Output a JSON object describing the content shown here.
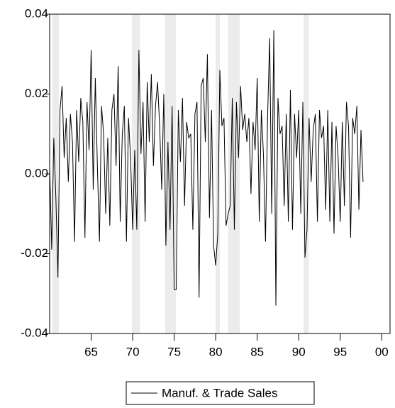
{
  "chart_data": {
    "type": "line",
    "x": [
      1960,
      1960.25,
      1960.5,
      1960.75,
      1961,
      1961.25,
      1961.5,
      1961.75,
      1962,
      1962.25,
      1962.5,
      1962.75,
      1963,
      1963.25,
      1963.5,
      1963.75,
      1964,
      1964.25,
      1964.5,
      1964.75,
      1965,
      1965.25,
      1965.5,
      1965.75,
      1966,
      1966.25,
      1966.5,
      1966.75,
      1967,
      1967.25,
      1967.5,
      1967.75,
      1968,
      1968.25,
      1968.5,
      1968.75,
      1969,
      1969.25,
      1969.5,
      1969.75,
      1970,
      1970.25,
      1970.5,
      1970.75,
      1971,
      1971.25,
      1971.5,
      1971.75,
      1972,
      1972.25,
      1972.5,
      1972.75,
      1973,
      1973.25,
      1973.5,
      1973.75,
      1974,
      1974.25,
      1974.5,
      1974.75,
      1975,
      1975.25,
      1975.5,
      1975.75,
      1976,
      1976.25,
      1976.5,
      1976.75,
      1977,
      1977.25,
      1977.5,
      1977.75,
      1978,
      1978.25,
      1978.5,
      1978.75,
      1979,
      1979.25,
      1979.5,
      1979.75,
      1980,
      1980.25,
      1980.5,
      1980.75,
      1981,
      1981.25,
      1981.5,
      1981.75,
      1982,
      1982.25,
      1982.5,
      1982.75,
      1983,
      1983.25,
      1983.5,
      1983.75,
      1984,
      1984.25,
      1984.5,
      1984.75,
      1985,
      1985.25,
      1985.5,
      1985.75,
      1986,
      1986.25,
      1986.5,
      1986.75,
      1987,
      1987.25,
      1987.5,
      1987.75,
      1988,
      1988.25,
      1988.5,
      1988.75,
      1989,
      1989.25,
      1989.5,
      1989.75,
      1990,
      1990.25,
      1990.5,
      1990.75,
      1991,
      1991.25,
      1991.5,
      1991.75,
      1992,
      1992.25,
      1992.5,
      1992.75,
      1993,
      1993.25,
      1993.5,
      1993.75,
      1994,
      1994.25,
      1994.5,
      1994.75,
      1995,
      1995.25,
      1995.5,
      1995.75,
      1996,
      1996.25,
      1996.5,
      1996.75,
      1997,
      1997.25,
      1997.5,
      1997.75
    ],
    "series": [
      {
        "name": "Manuf. & Trade Sales",
        "color": "#000000",
        "values": [
          0.002,
          -0.019,
          0.009,
          -0.006,
          -0.026,
          0.016,
          0.022,
          0.004,
          0.014,
          -0.002,
          0.015,
          0.008,
          -0.017,
          0.016,
          0.003,
          0.019,
          0.013,
          -0.016,
          0.018,
          0.006,
          0.031,
          -0.004,
          0.024,
          0.002,
          -0.017,
          0.017,
          0.01,
          -0.01,
          0.009,
          -0.013,
          0.016,
          0.02,
          0.002,
          0.027,
          -0.012,
          0.01,
          0.017,
          -0.017,
          0.014,
          0.004,
          -0.014,
          0.006,
          -0.014,
          0.031,
          0.005,
          0.018,
          -0.012,
          0.023,
          0.008,
          0.025,
          0.002,
          0.017,
          0.023,
          0.012,
          -0.004,
          0.02,
          -0.018,
          0.008,
          -0.014,
          0.017,
          -0.029,
          -0.029,
          0.016,
          0.003,
          0.019,
          -0.008,
          0.013,
          0.009,
          0.01,
          -0.014,
          0.015,
          0.018,
          -0.031,
          0.022,
          0.024,
          0.008,
          0.03,
          -0.011,
          0.016,
          -0.018,
          -0.023,
          -0.015,
          0.026,
          0.012,
          0.014,
          -0.013,
          -0.01,
          -0.008,
          0.019,
          -0.014,
          0.018,
          0.004,
          0.022,
          0.011,
          0.015,
          0.008,
          0.014,
          -0.005,
          0.013,
          0.006,
          0.024,
          -0.012,
          0.016,
          0.005,
          -0.017,
          0.014,
          0.034,
          -0.01,
          0.036,
          -0.033,
          0.019,
          0.01,
          0.012,
          -0.008,
          0.015,
          -0.012,
          0.021,
          -0.014,
          0.015,
          0.004,
          0.016,
          -0.01,
          0.018,
          -0.021,
          -0.014,
          0.014,
          -0.002,
          0.011,
          0.015,
          -0.012,
          0.016,
          0.009,
          0.012,
          -0.009,
          0.016,
          -0.012,
          0.013,
          -0.015,
          0.012,
          0.004,
          -0.012,
          0.013,
          -0.008,
          0.018,
          0.012,
          -0.016,
          0.014,
          0.01,
          0.017,
          -0.009,
          0.011,
          -0.002
        ]
      }
    ],
    "shaded_regions": [
      [
        1960.3,
        1961.1
      ],
      [
        1969.9,
        1970.9
      ],
      [
        1973.9,
        1975.2
      ],
      [
        1980.0,
        1980.5
      ],
      [
        1981.5,
        1982.9
      ],
      [
        1990.6,
        1991.2
      ]
    ],
    "shade_color": "#ececec",
    "xlim": [
      1960,
      2001
    ],
    "xticks": [
      {
        "value": 1965,
        "label": "65"
      },
      {
        "value": 1970,
        "label": "70"
      },
      {
        "value": 1975,
        "label": "75"
      },
      {
        "value": 1980,
        "label": "80"
      },
      {
        "value": 1985,
        "label": "85"
      },
      {
        "value": 1990,
        "label": "90"
      },
      {
        "value": 1995,
        "label": "95"
      },
      {
        "value": 2000,
        "label": "00"
      }
    ],
    "ylim": [
      -0.04,
      0.04
    ],
    "yticks": [
      -0.04,
      -0.02,
      {
        "value": 0,
        "label": "0.00"
      },
      0.02,
      0.04
    ],
    "legend": "bottom"
  }
}
